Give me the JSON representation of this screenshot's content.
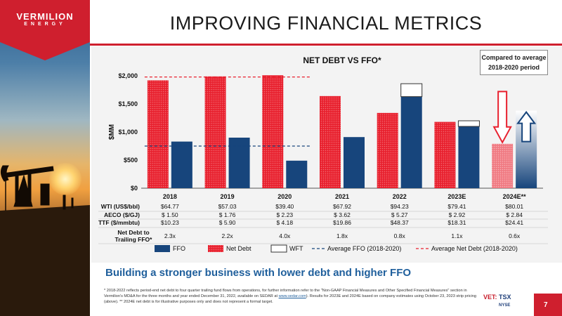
{
  "brand": {
    "name": "VERMILION",
    "sub": "ENERGY",
    "red": "#cf1f2e",
    "navy": "#17457c"
  },
  "page": {
    "title": "IMPROVING FINANCIAL METRICS",
    "number": "7"
  },
  "callout": {
    "line1": "Compared to average",
    "line2": "2018-2020 period"
  },
  "subtitle": "Building a stronger business with lower debt and higher FFO",
  "footnote": {
    "part1": "* 2018-2022 reflects period-end net debt to four quarter trailing fund flows from operations, for further information refer to the \"Non-GAAP Financial Measures and Other Specified Financial Measures\" section in Vermilion's MD&A for the three months and year ended December 31, 2022, available on SEDAR at ",
    "link": "www.sedar.com",
    "part2": "). Results for 2023E and 2024E based on company estimates using October 23, 2023 strip pricing (above). ** 2024E net debt is for illustrative purposes only and does not represent a formal target."
  },
  "ticker": {
    "vet": "VET:",
    "tsx": "TSX",
    "nyse": "NYSE"
  },
  "chart_data": {
    "type": "bar",
    "title": "NET DEBT VS FFO*",
    "ylabel": "$MM",
    "ylim": [
      0,
      2000
    ],
    "yticks": [
      "$0",
      "$500",
      "$1,000",
      "$1,500",
      "$2,000"
    ],
    "categories": [
      "2018",
      "2019",
      "2020",
      "2021",
      "2022",
      "2023E",
      "2024E**"
    ],
    "series": [
      {
        "name": "FFO",
        "color": "#17457c",
        "values": [
          830,
          900,
          490,
          910,
          1630,
          1100,
          1380
        ]
      },
      {
        "name": "Net Debt",
        "color": "#e8202e",
        "values": [
          1920,
          1990,
          2010,
          1640,
          1340,
          1180,
          790
        ]
      },
      {
        "name": "WFT",
        "color": "#ffffff",
        "values": [
          0,
          0,
          0,
          0,
          230,
          100,
          0
        ]
      }
    ],
    "reference_lines": [
      {
        "name": "Average FFO (2018-2020)",
        "value": 750,
        "color": "#17457c"
      },
      {
        "name": "Average Net Debt (2018-2020)",
        "value": 1980,
        "color": "#e8202e"
      }
    ],
    "table": {
      "rows": [
        {
          "label": "WTI (US$/bbl)",
          "values": [
            "$64.77",
            "$57.03",
            "$39.40",
            "$67.92",
            "$94.23",
            "$79.41",
            "$80.01"
          ]
        },
        {
          "label": "AECO ($/GJ)",
          "values": [
            "$  1.50",
            "$  1.76",
            "$  2.23",
            "$  3.62",
            "$  5.27",
            "$  2.92",
            "$  2.84"
          ]
        },
        {
          "label": "TTF ($/mmbtu)",
          "values": [
            "$10.23",
            "$  5.90",
            "$  4.18",
            "$19.86",
            "$48.37",
            "$18.31",
            "$24.41"
          ]
        }
      ],
      "ratio_label_1": "Net Debt to",
      "ratio_label_2": "Trailing FFO*",
      "ratio_values": [
        "2.3x",
        "2.2x",
        "4.0x",
        "1.8x",
        "0.8x",
        "1.1x",
        "0.6x"
      ]
    },
    "legend": [
      "FFO",
      "Net Debt",
      "WFT",
      "Average FFO (2018-2020)",
      "Average Net Debt (2018-2020)"
    ],
    "legend_placement": "bottom"
  }
}
